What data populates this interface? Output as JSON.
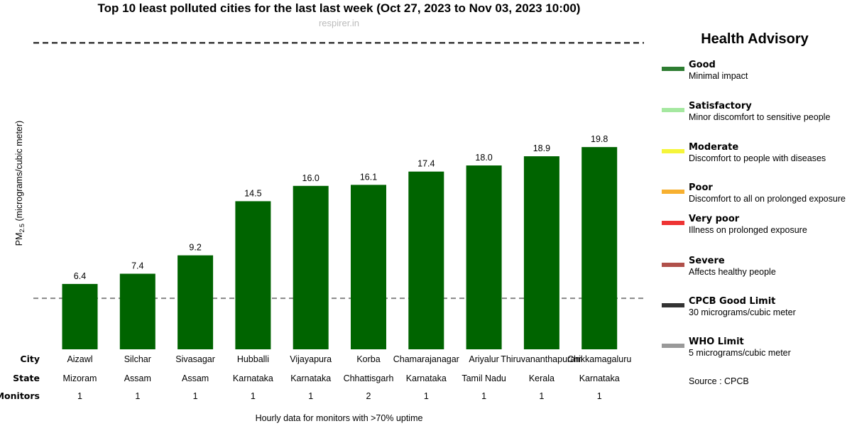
{
  "header": {
    "title": "Top 10 least polluted cities for the last last week (Oct 27, 2023 to Nov 03, 2023 10:00)",
    "subtitle": "respirer.in"
  },
  "chart_data": {
    "type": "bar",
    "title": "Top 10 least polluted cities for the last last week (Oct 27, 2023 to Nov 03, 2023 10:00)",
    "ylabel_main": "PM",
    "ylabel_sub": "2.5",
    "ylabel_rest": " (micrograms/cubic meter)",
    "categories": [
      "Aizawl",
      "Silchar",
      "Sivasagar",
      "Hubballi",
      "Vijayapura",
      "Korba",
      "Chamarajanagar",
      "Ariyalur",
      "Thiruvananthapuram",
      "Chikkamagaluru"
    ],
    "values": [
      6.4,
      7.4,
      9.2,
      14.5,
      16.0,
      16.1,
      17.4,
      18.0,
      18.9,
      19.8
    ],
    "value_labels": [
      "6.4",
      "7.4",
      "9.2",
      "14.5",
      "16.0",
      "16.1",
      "17.4",
      "18.0",
      "18.9",
      "19.8"
    ],
    "bar_color": "#006400",
    "ylim": [
      0,
      31
    ],
    "grid": false,
    "reference_lines": [
      {
        "name": "CPCB Good Limit",
        "value": 30,
        "color": "#222222",
        "style": "dashed"
      },
      {
        "name": "WHO Limit",
        "value": 5,
        "color": "#888888",
        "style": "dashed"
      }
    ],
    "table": {
      "rows": [
        {
          "label": "City",
          "values": [
            "Aizawl",
            "Silchar",
            "Sivasagar",
            "Hubballi",
            "Vijayapura",
            "Korba",
            "Chamarajanagar",
            "Ariyalur",
            "Thiruvananthapuram",
            "Chikkamagaluru"
          ]
        },
        {
          "label": "State",
          "values": [
            "Mizoram",
            "Assam",
            "Assam",
            "Karnataka",
            "Karnataka",
            "Chhattisgarh",
            "Karnataka",
            "Tamil Nadu",
            "Kerala",
            "Karnataka"
          ]
        },
        {
          "label": "Monitors",
          "values": [
            "1",
            "1",
            "1",
            "1",
            "1",
            "2",
            "1",
            "1",
            "1",
            "1"
          ]
        }
      ]
    },
    "legend_placement": "right"
  },
  "legend": {
    "title": "Health Advisory",
    "items": [
      {
        "name": "Good",
        "desc": "Minimal impact",
        "color": "#2e7d32"
      },
      {
        "name": "Satisfactory",
        "desc": "Minor discomfort to sensitive people",
        "color": "#a5e8a0"
      },
      {
        "name": "Moderate",
        "desc": "Discomfort to people with diseases",
        "color": "#f5f53a"
      },
      {
        "name": "Poor",
        "desc": "Discomfort to all on prolonged exposure",
        "color": "#f7b030"
      },
      {
        "name": "Very poor",
        "desc": "Illness on prolonged exposure",
        "color": "#ee3333"
      },
      {
        "name": "Severe",
        "desc": "Affects healthy people",
        "color": "#b0504a"
      },
      {
        "name": "CPCB Good Limit",
        "desc": "30 micrograms/cubic meter",
        "color": "#333333"
      },
      {
        "name": "WHO Limit",
        "desc": "5 micrograms/cubic meter",
        "color": "#999999"
      }
    ],
    "source": "Source : CPCB"
  },
  "footnote": "Hourly data for monitors with >70% uptime"
}
